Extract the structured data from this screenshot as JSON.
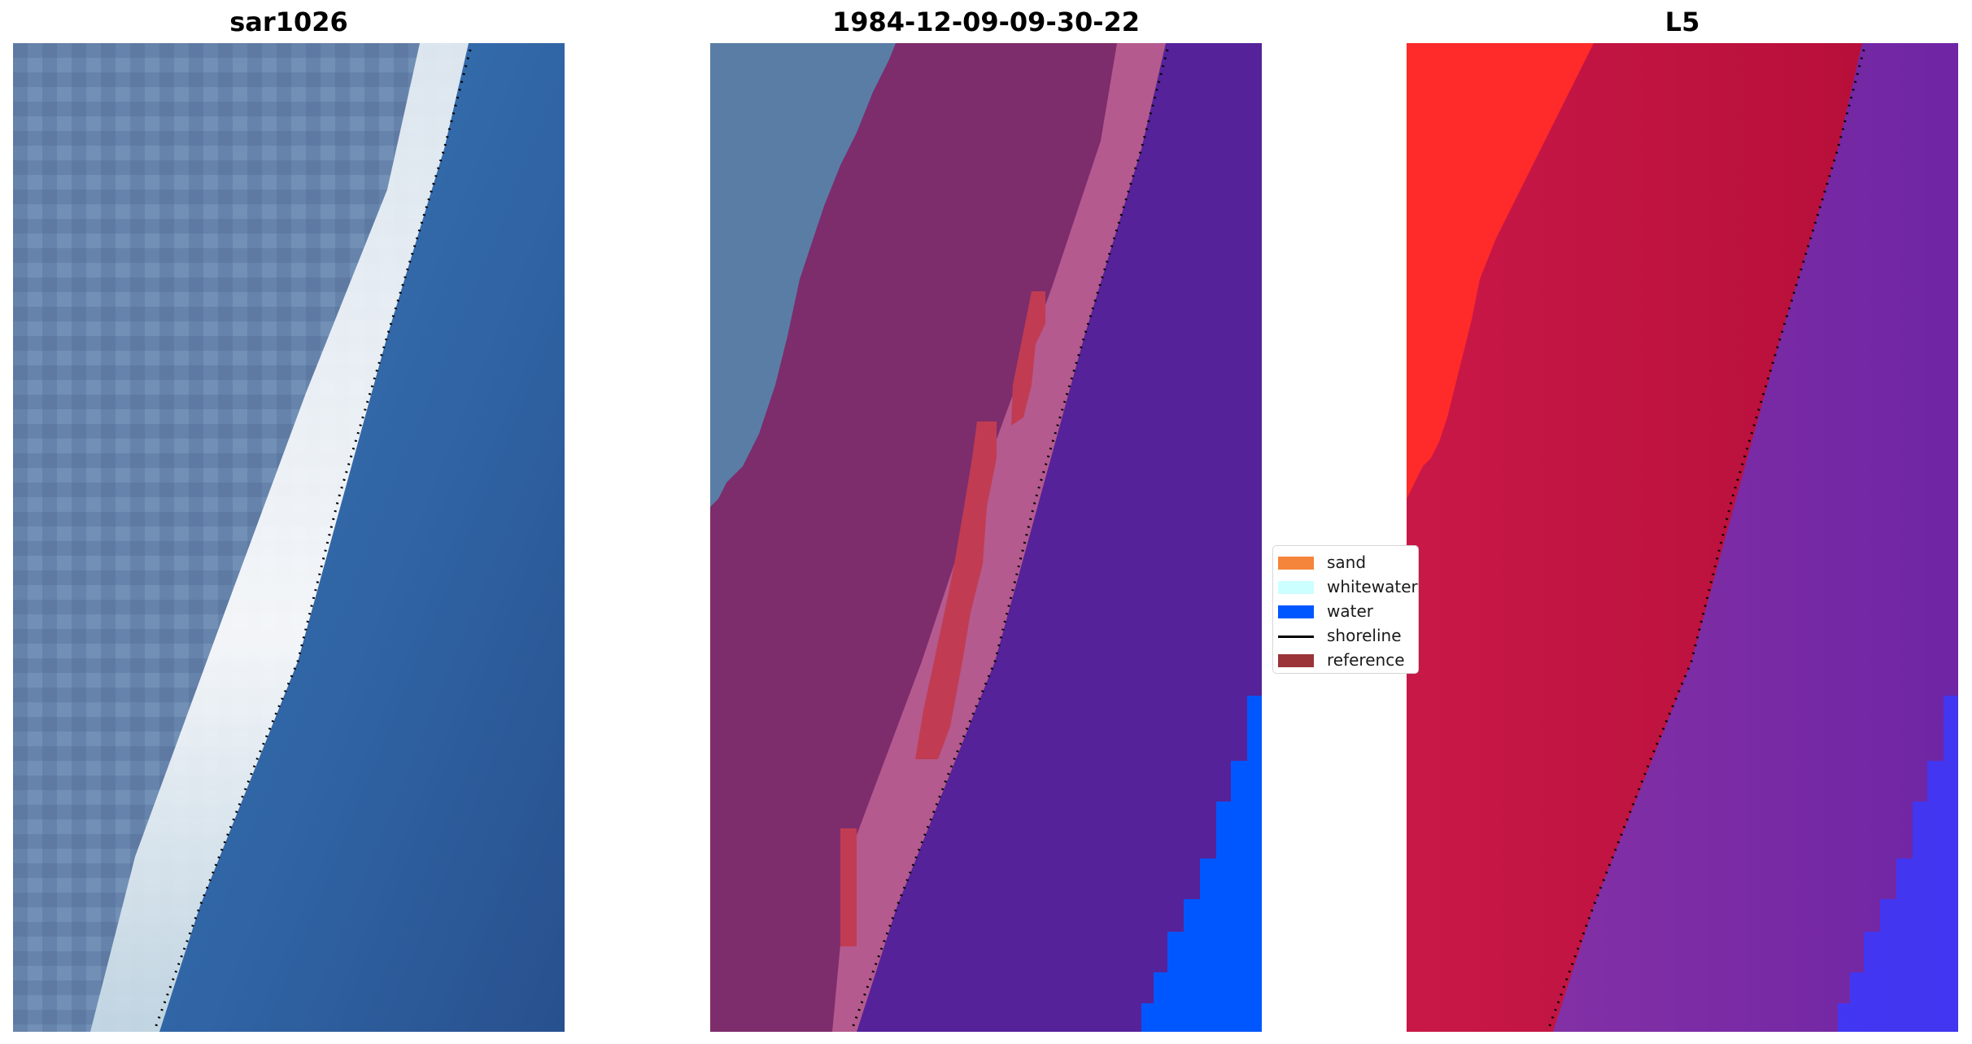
{
  "panels": [
    {
      "title": "sar1026"
    },
    {
      "title": "1984-12-09-09-30-22"
    },
    {
      "title": "L5"
    }
  ],
  "legend": {
    "items": [
      {
        "label": "sand",
        "color": "#f4853b",
        "kind": "patch"
      },
      {
        "label": "whitewater",
        "color": "#ccffff",
        "kind": "patch"
      },
      {
        "label": "water",
        "color": "#0057ff",
        "kind": "patch"
      },
      {
        "label": "shoreline",
        "color": "#000000",
        "kind": "line"
      },
      {
        "label": "reference",
        "color": "#9a3438",
        "kind": "patch"
      }
    ]
  },
  "colors": {
    "sar_land": "#5f7fa8",
    "sar_water": "#2f5c99",
    "sar_surf": "#dfeaf2",
    "class_land": "#7d2d6c",
    "class_ocean": "#55229a",
    "class_reference": "#c13c52",
    "class_water": "#0057ff",
    "class_unclassified": "#5a7da6",
    "l5_land": "#c4123f",
    "l5_red": "#ff2a2a",
    "l5_ocean": "#7a2aa0",
    "l5_blue": "#3a3aff",
    "shoreline": "#000000"
  }
}
